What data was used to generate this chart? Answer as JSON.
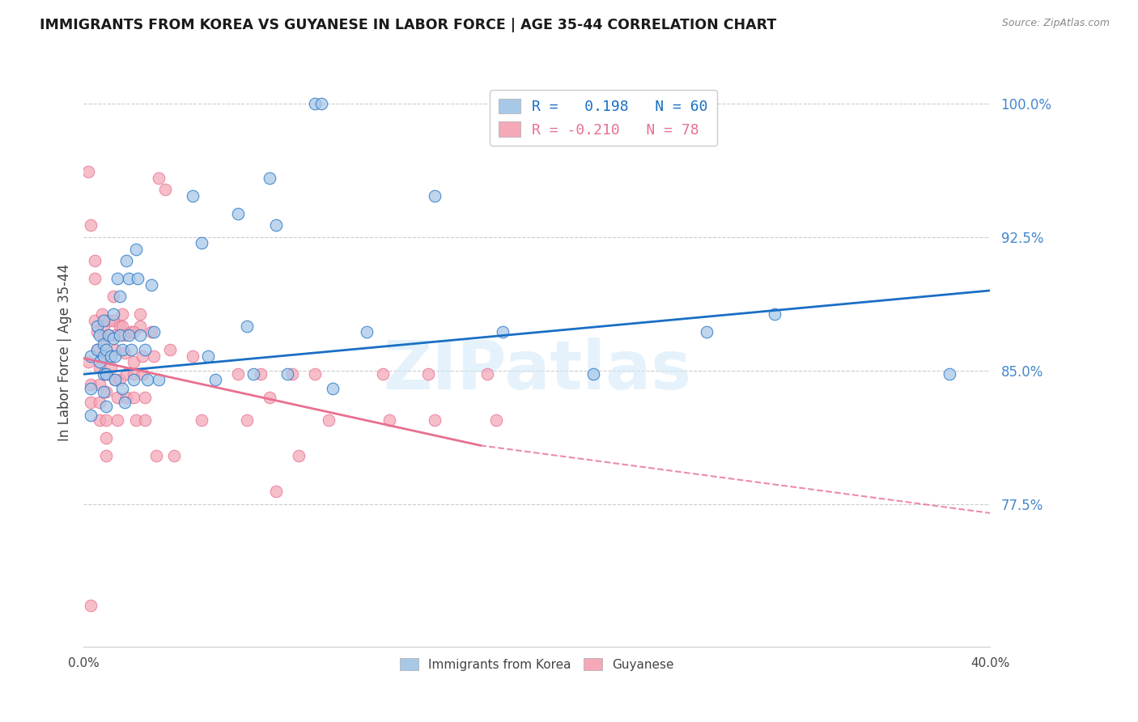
{
  "title": "IMMIGRANTS FROM KOREA VS GUYANESE IN LABOR FORCE | AGE 35-44 CORRELATION CHART",
  "source": "Source: ZipAtlas.com",
  "ylabel": "In Labor Force | Age 35-44",
  "ytick_labels": [
    "100.0%",
    "92.5%",
    "85.0%",
    "77.5%"
  ],
  "ytick_values": [
    1.0,
    0.925,
    0.85,
    0.775
  ],
  "xlim": [
    0.0,
    0.4
  ],
  "ylim": [
    0.695,
    1.025
  ],
  "color_korea": "#a8c8e8",
  "color_guyanese": "#f4a8b8",
  "color_korea_line": "#1a6fc4",
  "color_guyanese_line": "#e87090",
  "color_axis_text": "#4488cc",
  "watermark": "ZIPatlas",
  "korea_line_x0": 0.0,
  "korea_line_y0": 0.848,
  "korea_line_x1": 0.4,
  "korea_line_y1": 0.895,
  "guy_line_solid_x0": 0.0,
  "guy_line_solid_y0": 0.857,
  "guy_line_solid_x1": 0.175,
  "guy_line_solid_y1": 0.808,
  "guy_line_dash_x0": 0.175,
  "guy_line_dash_y0": 0.808,
  "guy_line_dash_x1": 0.4,
  "guy_line_dash_y1": 0.77,
  "korea_scatter_x": [
    0.003,
    0.003,
    0.003,
    0.006,
    0.006,
    0.007,
    0.007,
    0.009,
    0.009,
    0.009,
    0.009,
    0.009,
    0.01,
    0.01,
    0.01,
    0.011,
    0.012,
    0.013,
    0.013,
    0.014,
    0.014,
    0.015,
    0.016,
    0.016,
    0.017,
    0.017,
    0.018,
    0.019,
    0.02,
    0.02,
    0.021,
    0.022,
    0.023,
    0.024,
    0.025,
    0.027,
    0.028,
    0.03,
    0.031,
    0.033,
    0.048,
    0.052,
    0.055,
    0.058,
    0.068,
    0.072,
    0.075,
    0.082,
    0.085,
    0.09,
    0.102,
    0.105,
    0.11,
    0.125,
    0.155,
    0.185,
    0.225,
    0.275,
    0.305,
    0.382
  ],
  "korea_scatter_y": [
    0.858,
    0.84,
    0.825,
    0.875,
    0.862,
    0.87,
    0.855,
    0.878,
    0.865,
    0.858,
    0.848,
    0.838,
    0.862,
    0.848,
    0.83,
    0.87,
    0.858,
    0.882,
    0.868,
    0.858,
    0.845,
    0.902,
    0.892,
    0.87,
    0.862,
    0.84,
    0.832,
    0.912,
    0.902,
    0.87,
    0.862,
    0.845,
    0.918,
    0.902,
    0.87,
    0.862,
    0.845,
    0.898,
    0.872,
    0.845,
    0.948,
    0.922,
    0.858,
    0.845,
    0.938,
    0.875,
    0.848,
    0.958,
    0.932,
    0.848,
    1.0,
    1.0,
    0.84,
    0.872,
    0.948,
    0.872,
    0.848,
    0.872,
    0.882,
    0.848
  ],
  "guyanese_scatter_x": [
    0.002,
    0.003,
    0.003,
    0.003,
    0.005,
    0.005,
    0.005,
    0.006,
    0.006,
    0.007,
    0.007,
    0.007,
    0.007,
    0.008,
    0.009,
    0.009,
    0.009,
    0.01,
    0.01,
    0.01,
    0.01,
    0.01,
    0.011,
    0.011,
    0.012,
    0.013,
    0.013,
    0.014,
    0.014,
    0.014,
    0.015,
    0.015,
    0.016,
    0.016,
    0.017,
    0.017,
    0.018,
    0.018,
    0.019,
    0.019,
    0.021,
    0.022,
    0.022,
    0.022,
    0.023,
    0.025,
    0.025,
    0.026,
    0.026,
    0.027,
    0.027,
    0.03,
    0.031,
    0.032,
    0.038,
    0.04,
    0.048,
    0.052,
    0.068,
    0.072,
    0.078,
    0.082,
    0.085,
    0.092,
    0.095,
    0.102,
    0.108,
    0.132,
    0.135,
    0.152,
    0.155,
    0.178,
    0.182,
    0.002,
    0.003,
    0.022,
    0.033,
    0.036
  ],
  "guyanese_scatter_y": [
    0.855,
    0.842,
    0.832,
    0.718,
    0.912,
    0.902,
    0.878,
    0.872,
    0.862,
    0.852,
    0.842,
    0.832,
    0.822,
    0.882,
    0.875,
    0.868,
    0.858,
    0.848,
    0.838,
    0.822,
    0.812,
    0.802,
    0.878,
    0.87,
    0.852,
    0.892,
    0.878,
    0.87,
    0.862,
    0.845,
    0.835,
    0.822,
    0.875,
    0.845,
    0.882,
    0.875,
    0.87,
    0.86,
    0.848,
    0.835,
    0.872,
    0.855,
    0.848,
    0.835,
    0.822,
    0.882,
    0.875,
    0.858,
    0.848,
    0.835,
    0.822,
    0.872,
    0.858,
    0.802,
    0.862,
    0.802,
    0.858,
    0.822,
    0.848,
    0.822,
    0.848,
    0.835,
    0.782,
    0.848,
    0.802,
    0.848,
    0.822,
    0.848,
    0.822,
    0.848,
    0.822,
    0.848,
    0.822,
    0.962,
    0.932,
    0.872,
    0.958,
    0.952
  ]
}
